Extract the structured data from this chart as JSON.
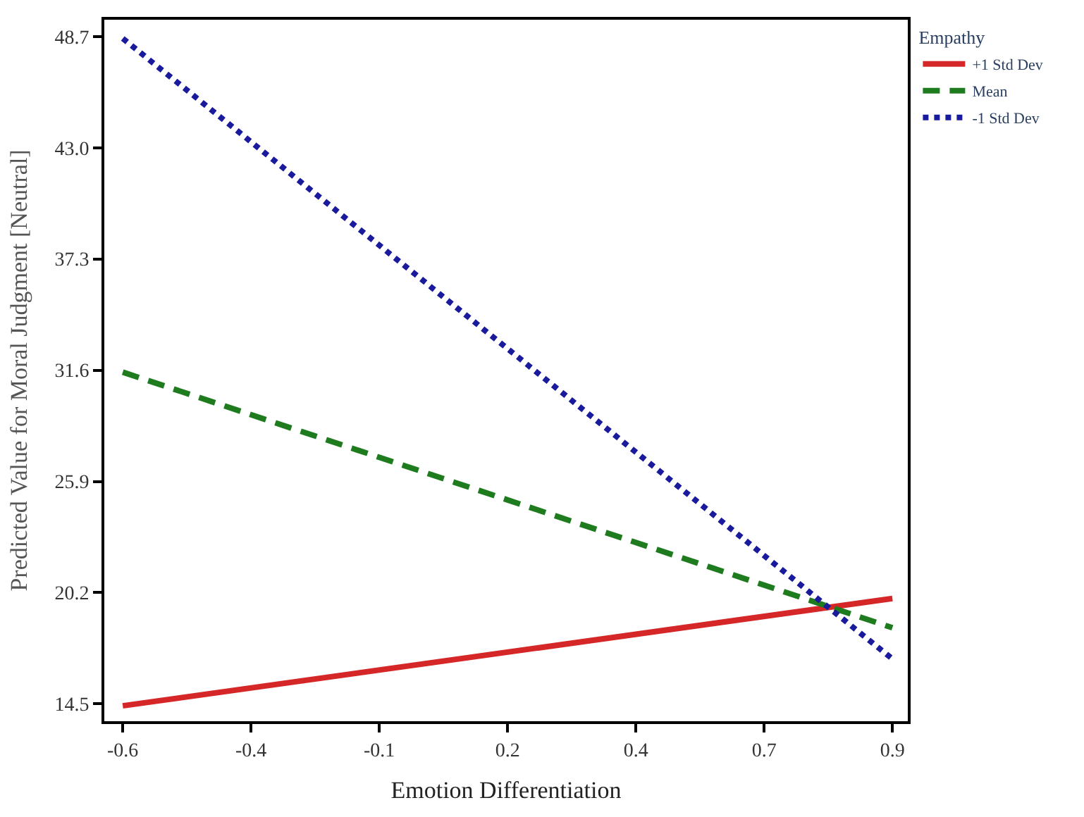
{
  "chart_data": {
    "type": "line",
    "xlabel": "Emotion Differentiation",
    "ylabel": "Predicted Value for Moral Judgment [Neutral]",
    "legend_title": "Empathy",
    "x": [
      -0.6,
      0.9
    ],
    "series": [
      {
        "name": "+1 Std Dev",
        "color": "#d62728",
        "values": [
          14.4,
          19.9
        ],
        "line_style": "solid"
      },
      {
        "name": "Mean",
        "color": "#1e7b1e",
        "values": [
          31.5,
          18.4
        ],
        "line_style": "dashed"
      },
      {
        "name": "-1 Std Dev",
        "color": "#1a1a9c",
        "values": [
          48.6,
          16.8
        ],
        "line_style": "dotted"
      }
    ],
    "xlim": [
      -0.636,
      0.93
    ],
    "xticks": [
      -0.6,
      {
        "value": -0.35,
        "label": "-0.4"
      },
      -0.1,
      {
        "value": 0.15,
        "label": "0.2"
      },
      0.4,
      {
        "value": 0.65,
        "label": "0.7"
      },
      0.9
    ],
    "ylim": [
      13.61,
      49.56
    ],
    "yticks": [
      {
        "value": 14.5,
        "label": "14.5"
      },
      {
        "value": 20.2,
        "label": "20.2"
      },
      {
        "value": 25.9,
        "label": "25.9"
      },
      {
        "value": 31.6,
        "label": "31.6"
      },
      {
        "value": 37.3,
        "label": "37.3"
      },
      {
        "value": 43.0,
        "label": "43.0"
      },
      {
        "value": 48.7,
        "label": "48.7"
      }
    ],
    "legend": "top right",
    "marker": "none"
  }
}
